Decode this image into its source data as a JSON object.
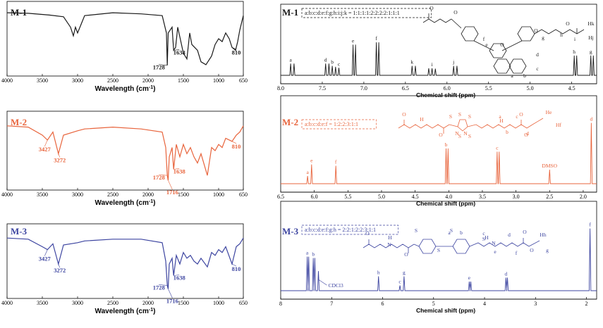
{
  "colors": {
    "M1": "#1a1a1a",
    "M2": "#e8643c",
    "M3": "#3c44a0"
  },
  "chart_data": [
    {
      "id": "ir-m1",
      "type": "line",
      "panel": "IR",
      "color_key": "M1",
      "title": "M-1",
      "xlabel": "Wavelength (cm",
      "xlabel_sup": "-1",
      "xlabel_end": ")",
      "xlim": [
        4000,
        650
      ],
      "x_reversed": true,
      "ticks": [
        "4000",
        "3500",
        "3000",
        "2500",
        "2000",
        "1500",
        "1000",
        "650"
      ],
      "baseline": 0.05,
      "points": [
        [
          4000,
          0.05
        ],
        [
          3700,
          0.06
        ],
        [
          3400,
          0.09
        ],
        [
          3200,
          0.12
        ],
        [
          3100,
          0.3
        ],
        [
          3060,
          0.45
        ],
        [
          3030,
          0.3
        ],
        [
          3000,
          0.4
        ],
        [
          2950,
          0.25
        ],
        [
          2900,
          0.1
        ],
        [
          2500,
          0.05
        ],
        [
          2100,
          0.07
        ],
        [
          1800,
          0.1
        ],
        [
          1740,
          0.4
        ],
        [
          1728,
          0.96
        ],
        [
          1715,
          0.4
        ],
        [
          1660,
          0.3
        ],
        [
          1638,
          0.7
        ],
        [
          1610,
          0.65
        ],
        [
          1580,
          0.3
        ],
        [
          1500,
          0.75
        ],
        [
          1450,
          0.85
        ],
        [
          1410,
          0.4
        ],
        [
          1380,
          0.6
        ],
        [
          1300,
          0.7
        ],
        [
          1250,
          0.9
        ],
        [
          1180,
          0.95
        ],
        [
          1100,
          0.8
        ],
        [
          1050,
          0.6
        ],
        [
          1000,
          0.5
        ],
        [
          950,
          0.55
        ],
        [
          900,
          0.4
        ],
        [
          850,
          0.5
        ],
        [
          810,
          0.65
        ],
        [
          760,
          0.7
        ],
        [
          730,
          0.55
        ],
        [
          700,
          0.35
        ],
        [
          650,
          0.1
        ]
      ],
      "peaks": [
        {
          "x": 1728,
          "label": "1728"
        },
        {
          "x": 1638,
          "label": "1638"
        },
        {
          "x": 810,
          "label": "810"
        }
      ]
    },
    {
      "id": "ir-m2",
      "type": "line",
      "panel": "IR",
      "color_key": "M2",
      "title": "M-2",
      "xlabel": "Wavelength (cm",
      "xlabel_sup": "-1",
      "xlabel_end": ")",
      "xlim": [
        4000,
        650
      ],
      "x_reversed": true,
      "ticks": [
        "4000",
        "3500",
        "3000",
        "2500",
        "2000",
        "1500",
        "1000",
        "650"
      ],
      "baseline": 0.1,
      "points": [
        [
          4000,
          0.1
        ],
        [
          3700,
          0.12
        ],
        [
          3500,
          0.25
        ],
        [
          3427,
          0.33
        ],
        [
          3350,
          0.2
        ],
        [
          3272,
          0.55
        ],
        [
          3200,
          0.25
        ],
        [
          3000,
          0.18
        ],
        [
          2900,
          0.15
        ],
        [
          2500,
          0.12
        ],
        [
          2100,
          0.15
        ],
        [
          1800,
          0.2
        ],
        [
          1750,
          0.45
        ],
        [
          1728,
          0.9
        ],
        [
          1716,
          0.98
        ],
        [
          1700,
          0.6
        ],
        [
          1660,
          0.45
        ],
        [
          1638,
          0.8
        ],
        [
          1600,
          0.4
        ],
        [
          1550,
          0.6
        ],
        [
          1500,
          0.4
        ],
        [
          1450,
          0.55
        ],
        [
          1400,
          0.45
        ],
        [
          1350,
          0.6
        ],
        [
          1300,
          0.7
        ],
        [
          1250,
          0.55
        ],
        [
          1160,
          0.9
        ],
        [
          1100,
          0.45
        ],
        [
          1050,
          0.5
        ],
        [
          1000,
          0.4
        ],
        [
          950,
          0.45
        ],
        [
          900,
          0.3
        ],
        [
          810,
          0.35
        ],
        [
          750,
          0.25
        ],
        [
          700,
          0.2
        ],
        [
          650,
          0.1
        ]
      ],
      "peaks": [
        {
          "x": 3427,
          "label": "3427"
        },
        {
          "x": 3272,
          "label": "3272"
        },
        {
          "x": 1728,
          "label": "1728"
        },
        {
          "x": 1716,
          "label": "1716"
        },
        {
          "x": 1638,
          "label": "1638"
        },
        {
          "x": 810,
          "label": "810"
        }
      ]
    },
    {
      "id": "ir-m3",
      "type": "line",
      "panel": "IR",
      "color_key": "M3",
      "title": "M-3",
      "xlabel": "Wavelength (cm",
      "xlabel_sup": "-1",
      "xlabel_end": ")",
      "xlim": [
        4000,
        650
      ],
      "x_reversed": true,
      "ticks": [
        "4000",
        "3500",
        "3000",
        "2500",
        "2000",
        "1500",
        "1000",
        "650"
      ],
      "baseline": 0.1,
      "points": [
        [
          4000,
          0.1
        ],
        [
          3700,
          0.12
        ],
        [
          3500,
          0.25
        ],
        [
          3427,
          0.3
        ],
        [
          3350,
          0.2
        ],
        [
          3272,
          0.55
        ],
        [
          3200,
          0.22
        ],
        [
          3000,
          0.18
        ],
        [
          2900,
          0.15
        ],
        [
          2500,
          0.12
        ],
        [
          2100,
          0.12
        ],
        [
          1800,
          0.18
        ],
        [
          1750,
          0.5
        ],
        [
          1728,
          0.92
        ],
        [
          1716,
          0.98
        ],
        [
          1700,
          0.55
        ],
        [
          1660,
          0.45
        ],
        [
          1638,
          0.75
        ],
        [
          1600,
          0.4
        ],
        [
          1550,
          0.55
        ],
        [
          1500,
          0.35
        ],
        [
          1450,
          0.45
        ],
        [
          1400,
          0.4
        ],
        [
          1350,
          0.5
        ],
        [
          1300,
          0.55
        ],
        [
          1250,
          0.45
        ],
        [
          1160,
          0.6
        ],
        [
          1100,
          0.35
        ],
        [
          1050,
          0.4
        ],
        [
          1000,
          0.3
        ],
        [
          950,
          0.35
        ],
        [
          900,
          0.25
        ],
        [
          810,
          0.55
        ],
        [
          750,
          0.25
        ],
        [
          700,
          0.2
        ],
        [
          650,
          0.1
        ]
      ],
      "peaks": [
        {
          "x": 3427,
          "label": "3427"
        },
        {
          "x": 3272,
          "label": "3272"
        },
        {
          "x": 1728,
          "label": "1728"
        },
        {
          "x": 1716,
          "label": "1716"
        },
        {
          "x": 1638,
          "label": "1638"
        },
        {
          "x": 810,
          "label": "810"
        }
      ]
    },
    {
      "id": "nmr-m1",
      "type": "line",
      "panel": "NMR",
      "color_key": "M1",
      "title": "M-1",
      "ratio": "a:b:c:d:e:f:g:h:i:j:k = 1:1:1:1:2:2:2:2:1:1:1",
      "xlabel": "Chemical shift (ppm)",
      "xlim": [
        8.0,
        4.2
      ],
      "x_reversed": true,
      "ticks": [
        "8.0",
        "7.5",
        "7.0",
        "6.5",
        "6.0",
        "5.5",
        "5.0",
        "4.5"
      ],
      "peaks": [
        {
          "x": 7.88,
          "h": 0.25,
          "label": "a"
        },
        {
          "x": 7.84,
          "h": 0.25
        },
        {
          "x": 7.46,
          "h": 0.25,
          "label": "d"
        },
        {
          "x": 7.42,
          "h": 0.25
        },
        {
          "x": 7.38,
          "h": 0.2,
          "label": "b"
        },
        {
          "x": 7.34,
          "h": 0.18
        },
        {
          "x": 7.3,
          "h": 0.16,
          "label": "c"
        },
        {
          "x": 7.13,
          "h": 0.65,
          "label": "e"
        },
        {
          "x": 7.1,
          "h": 0.65
        },
        {
          "x": 6.85,
          "h": 0.7,
          "label": "f"
        },
        {
          "x": 6.82,
          "h": 0.7
        },
        {
          "x": 6.42,
          "h": 0.2,
          "label": "k"
        },
        {
          "x": 6.38,
          "h": 0.2
        },
        {
          "x": 6.22,
          "h": 0.15
        },
        {
          "x": 6.18,
          "h": 0.15,
          "label": "i"
        },
        {
          "x": 6.14,
          "h": 0.14
        },
        {
          "x": 5.92,
          "h": 0.2,
          "label": "j"
        },
        {
          "x": 5.88,
          "h": 0.2
        },
        {
          "x": 4.47,
          "h": 0.42,
          "label": "h"
        },
        {
          "x": 4.44,
          "h": 0.42
        },
        {
          "x": 4.27,
          "h": 0.42,
          "label": "g"
        },
        {
          "x": 4.24,
          "h": 0.42
        }
      ]
    },
    {
      "id": "nmr-m2",
      "type": "line",
      "panel": "NMR",
      "color_key": "M2",
      "title": "M-2",
      "ratio": "a:b:c:d:e:f = 1:2:2:3:1:1",
      "xlabel": "Chemical shift (ppm)",
      "xlim": [
        6.5,
        1.8
      ],
      "x_reversed": true,
      "ticks": [
        "6.5",
        "6.0",
        "5.5",
        "5.0",
        "4.5",
        "4.0",
        "3.5",
        "3.0",
        "2.5",
        "2.0"
      ],
      "peaks": [
        {
          "x": 6.1,
          "h": 0.12,
          "label": "a"
        },
        {
          "x": 6.04,
          "h": 0.3,
          "label": "e"
        },
        {
          "x": 5.68,
          "h": 0.28,
          "label": "f"
        },
        {
          "x": 4.04,
          "h": 0.55,
          "label": "b"
        },
        {
          "x": 4.01,
          "h": 0.55
        },
        {
          "x": 3.28,
          "h": 0.5,
          "label": "c"
        },
        {
          "x": 3.25,
          "h": 0.5
        },
        {
          "x": 2.5,
          "h": 0.22,
          "label": "DMSO"
        },
        {
          "x": 1.88,
          "h": 0.95,
          "label": "d"
        }
      ]
    },
    {
      "id": "nmr-m3",
      "type": "line",
      "panel": "NMR",
      "color_key": "M3",
      "title": "M-3",
      "ratio": "a:b:c:d:e:f:g:h = 2:2:1:2:2:3:1:1",
      "xlabel": "Chemical shift (ppm)",
      "xlim": [
        8.0,
        1.8
      ],
      "x_reversed": true,
      "ticks": [
        "8",
        "7",
        "6",
        "5",
        "4",
        "3",
        "2"
      ],
      "peaks": [
        {
          "x": 7.48,
          "h": 0.52,
          "label": "a"
        },
        {
          "x": 7.45,
          "h": 0.52
        },
        {
          "x": 7.36,
          "h": 0.5,
          "label": "b"
        },
        {
          "x": 7.33,
          "h": 0.5
        },
        {
          "x": 7.26,
          "h": 0.3,
          "label": "CDCl3"
        },
        {
          "x": 6.08,
          "h": 0.22,
          "label": "h"
        },
        {
          "x": 5.66,
          "h": 0.08,
          "label": "c"
        },
        {
          "x": 5.58,
          "h": 0.22,
          "label": "g"
        },
        {
          "x": 4.3,
          "h": 0.14,
          "label": "e"
        },
        {
          "x": 4.27,
          "h": 0.14
        },
        {
          "x": 3.58,
          "h": 0.2,
          "label": "d"
        },
        {
          "x": 3.55,
          "h": 0.2
        },
        {
          "x": 1.93,
          "h": 0.95,
          "label": "f"
        }
      ]
    }
  ],
  "structure_labels": {
    "m1": [
      "f",
      "e",
      "a",
      "b",
      "c",
      "d",
      "g",
      "h",
      "O",
      "Hk",
      "i",
      "Hj",
      "O",
      "O",
      "O",
      "O"
    ],
    "m2": [
      "a",
      "b",
      "c",
      "d",
      "He",
      "Hf",
      "S",
      "S",
      "S",
      "N",
      "N",
      "H",
      "H",
      "O",
      "O",
      "O",
      "O",
      "S",
      "S"
    ],
    "m3": [
      "a",
      "b",
      "c",
      "d",
      "e",
      "f",
      "Hh",
      "g",
      "S",
      "S",
      "S",
      "S",
      "H",
      "H",
      "N",
      "N",
      "O",
      "O",
      "O",
      "O"
    ]
  }
}
